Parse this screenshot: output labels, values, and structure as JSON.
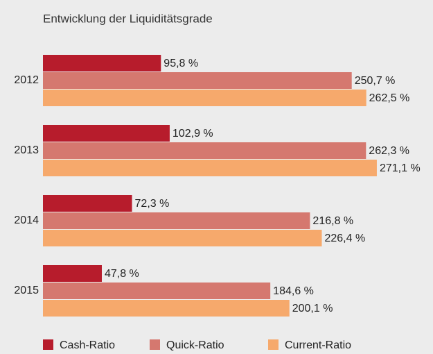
{
  "chart_data": {
    "type": "hbar",
    "title": "Entwicklung der Liquiditätsgrade",
    "categories": [
      "2012",
      "2013",
      "2014",
      "2015"
    ],
    "series": [
      {
        "name": "Cash-Ratio",
        "color": "#b71c2c",
        "values": [
          95.8,
          102.9,
          72.3,
          47.8
        ],
        "value_labels": [
          "95,8 %",
          "102,9 %",
          "72,3 %",
          "47,8 %"
        ]
      },
      {
        "name": "Quick-Ratio",
        "color": "#d5786f",
        "values": [
          250.7,
          262.3,
          216.8,
          184.6
        ],
        "value_labels": [
          "250,7 %",
          "262,3 %",
          "216,8 %",
          "184,6 %"
        ]
      },
      {
        "name": "Current-Ratio",
        "color": "#f6a96c",
        "values": [
          262.5,
          271.1,
          226.4,
          200.1
        ],
        "value_labels": [
          "262,5 %",
          "271,1 %",
          "226,4 %",
          "200,1 %"
        ]
      }
    ],
    "xlim": [
      0,
      315
    ]
  }
}
